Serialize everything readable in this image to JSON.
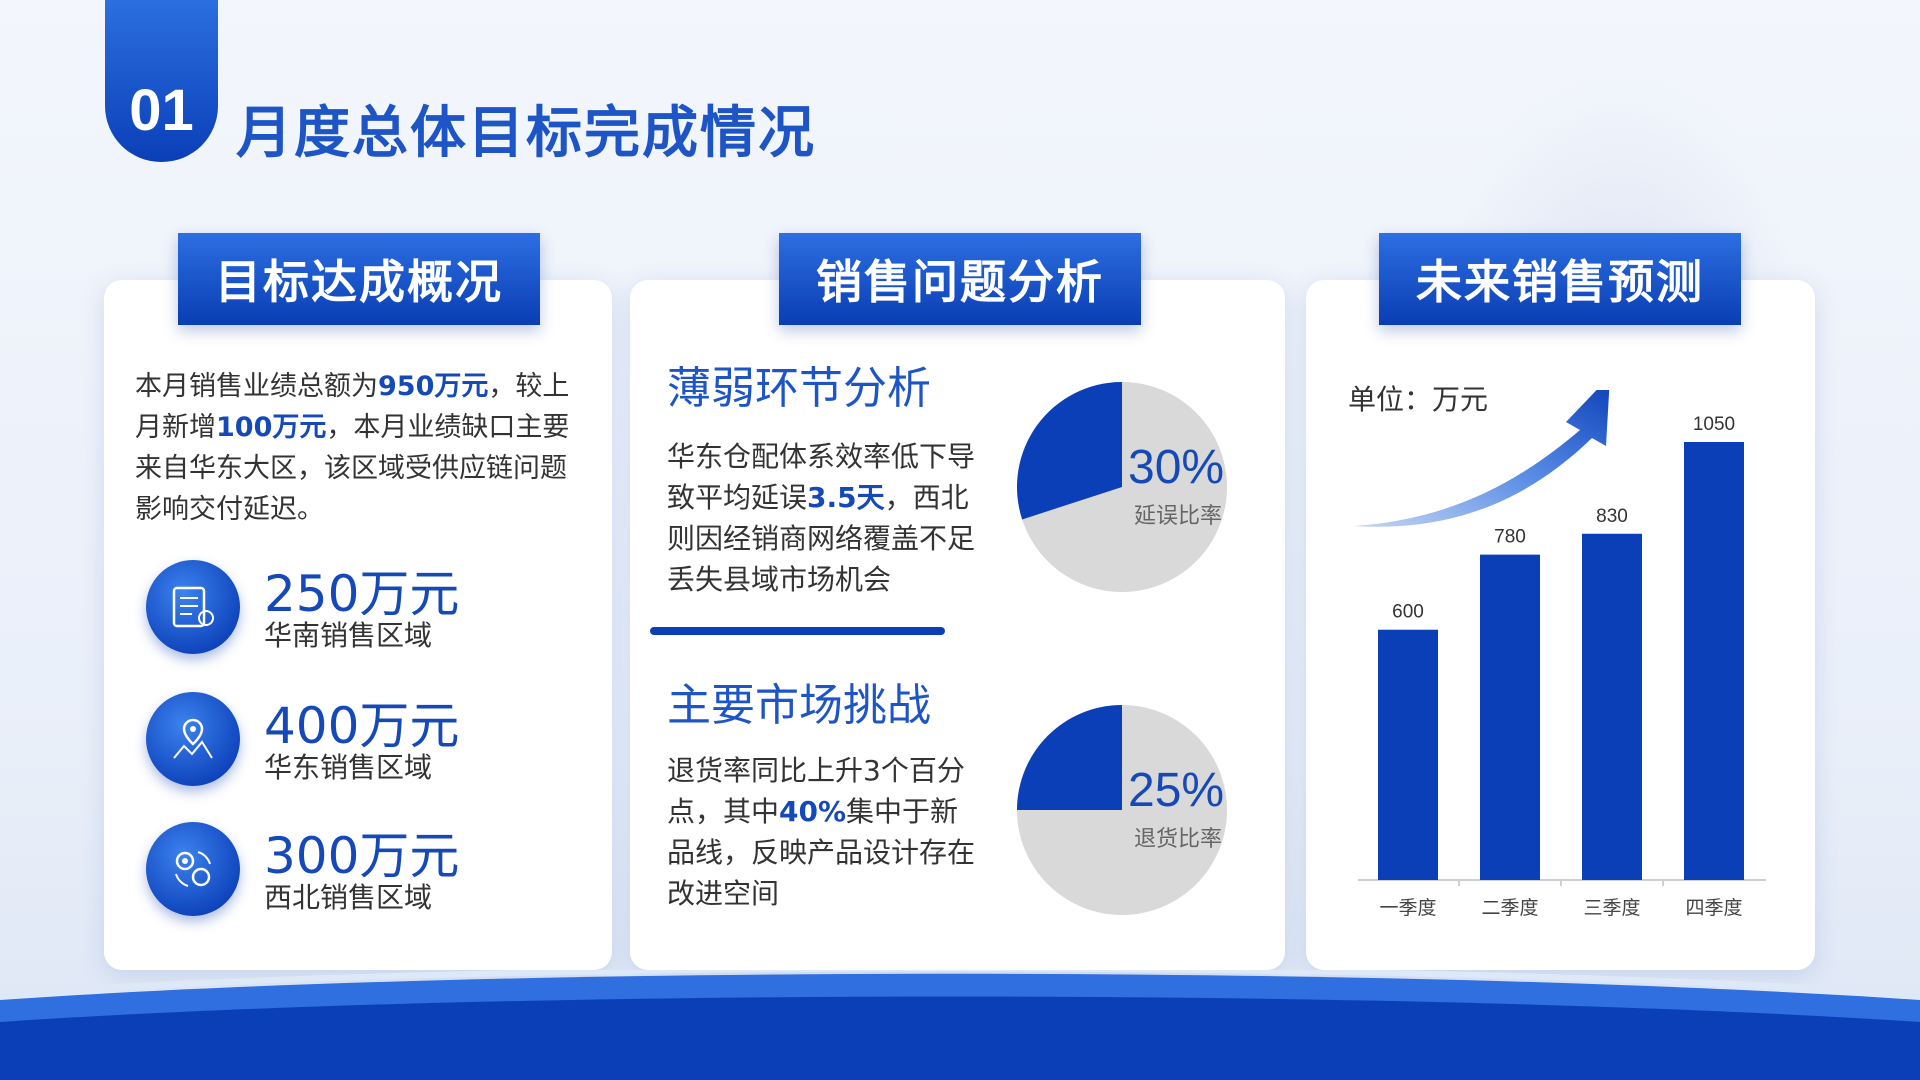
{
  "header": {
    "section_number": "01",
    "title": "月度总体目标完成情况"
  },
  "colors": {
    "primary": "#0b3fb8",
    "accent": "#1e55c6",
    "pie_rest": "#d9d9d9"
  },
  "card1": {
    "tag": "目标达成概况",
    "intro_parts": [
      "本月销售业绩总额为",
      "950万元",
      "，较上月新增",
      "100万元",
      "，本月业绩缺口主要来自华东大区，该区域受供应链问题影响交付延迟。"
    ],
    "regions": [
      {
        "amount": "250万元",
        "label": "华南销售区域",
        "icon": "document-chart-icon"
      },
      {
        "amount": "400万元",
        "label": "华东销售区域",
        "icon": "map-pin-icon"
      },
      {
        "amount": "300万元",
        "label": "西北销售区域",
        "icon": "gear-cycle-icon"
      }
    ]
  },
  "card2": {
    "tag": "销售问题分析",
    "section1": {
      "heading": "薄弱环节分析",
      "text_parts": [
        "华东仓配体系效率低下导致平均延误",
        "3.5天",
        "，西北则因经销商网络覆盖不足丢失县域市场机会"
      ],
      "pie_value": "30%",
      "pie_label": "延误比率",
      "pie_fraction": 0.3
    },
    "section2": {
      "heading": "主要市场挑战",
      "text_parts": [
        "退货率同比上升3个百分点，其中",
        "40%",
        "集中于新品线，反映产品设计存在改进空间"
      ],
      "pie_value": "25%",
      "pie_label": "退货比率",
      "pie_fraction": 0.25
    }
  },
  "card3": {
    "tag": "未来销售预测",
    "unit": "单位：万元"
  },
  "chart_data": {
    "type": "bar",
    "categories": [
      "一季度",
      "二季度",
      "三季度",
      "四季度"
    ],
    "values": [
      600,
      780,
      830,
      1050
    ],
    "ylim": [
      0,
      1050
    ],
    "grid": false
  }
}
